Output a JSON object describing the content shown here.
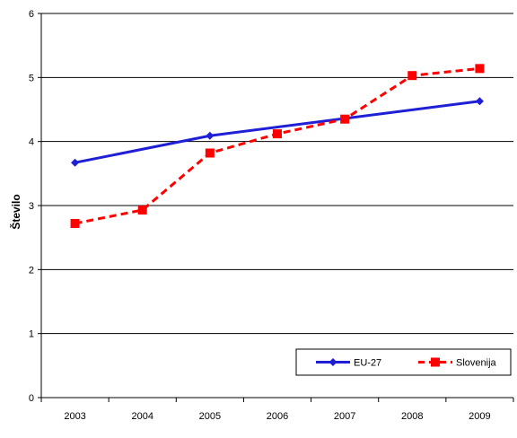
{
  "chart_data": {
    "type": "line",
    "title": "",
    "xlabel": "",
    "ylabel": "Število",
    "x": [
      "2003",
      "2004",
      "2005",
      "2006",
      "2007",
      "2008",
      "2009"
    ],
    "ylim": [
      0,
      6
    ],
    "yticks": [
      "0",
      "1",
      "2",
      "3",
      "4",
      "5",
      "6"
    ],
    "grid": "horizontal",
    "legend_position": "bottom-right",
    "series": [
      {
        "name": "EU-27",
        "color": "#1f1fd6",
        "line": "solid",
        "marker": "diamond",
        "values": [
          3.67,
          null,
          4.09,
          null,
          null,
          null,
          4.63
        ]
      },
      {
        "name": "Slovenija",
        "color": "#ff0000",
        "line": "dashed",
        "marker": "square",
        "values": [
          2.72,
          2.93,
          3.82,
          4.12,
          4.35,
          5.03,
          5.14
        ]
      }
    ]
  }
}
